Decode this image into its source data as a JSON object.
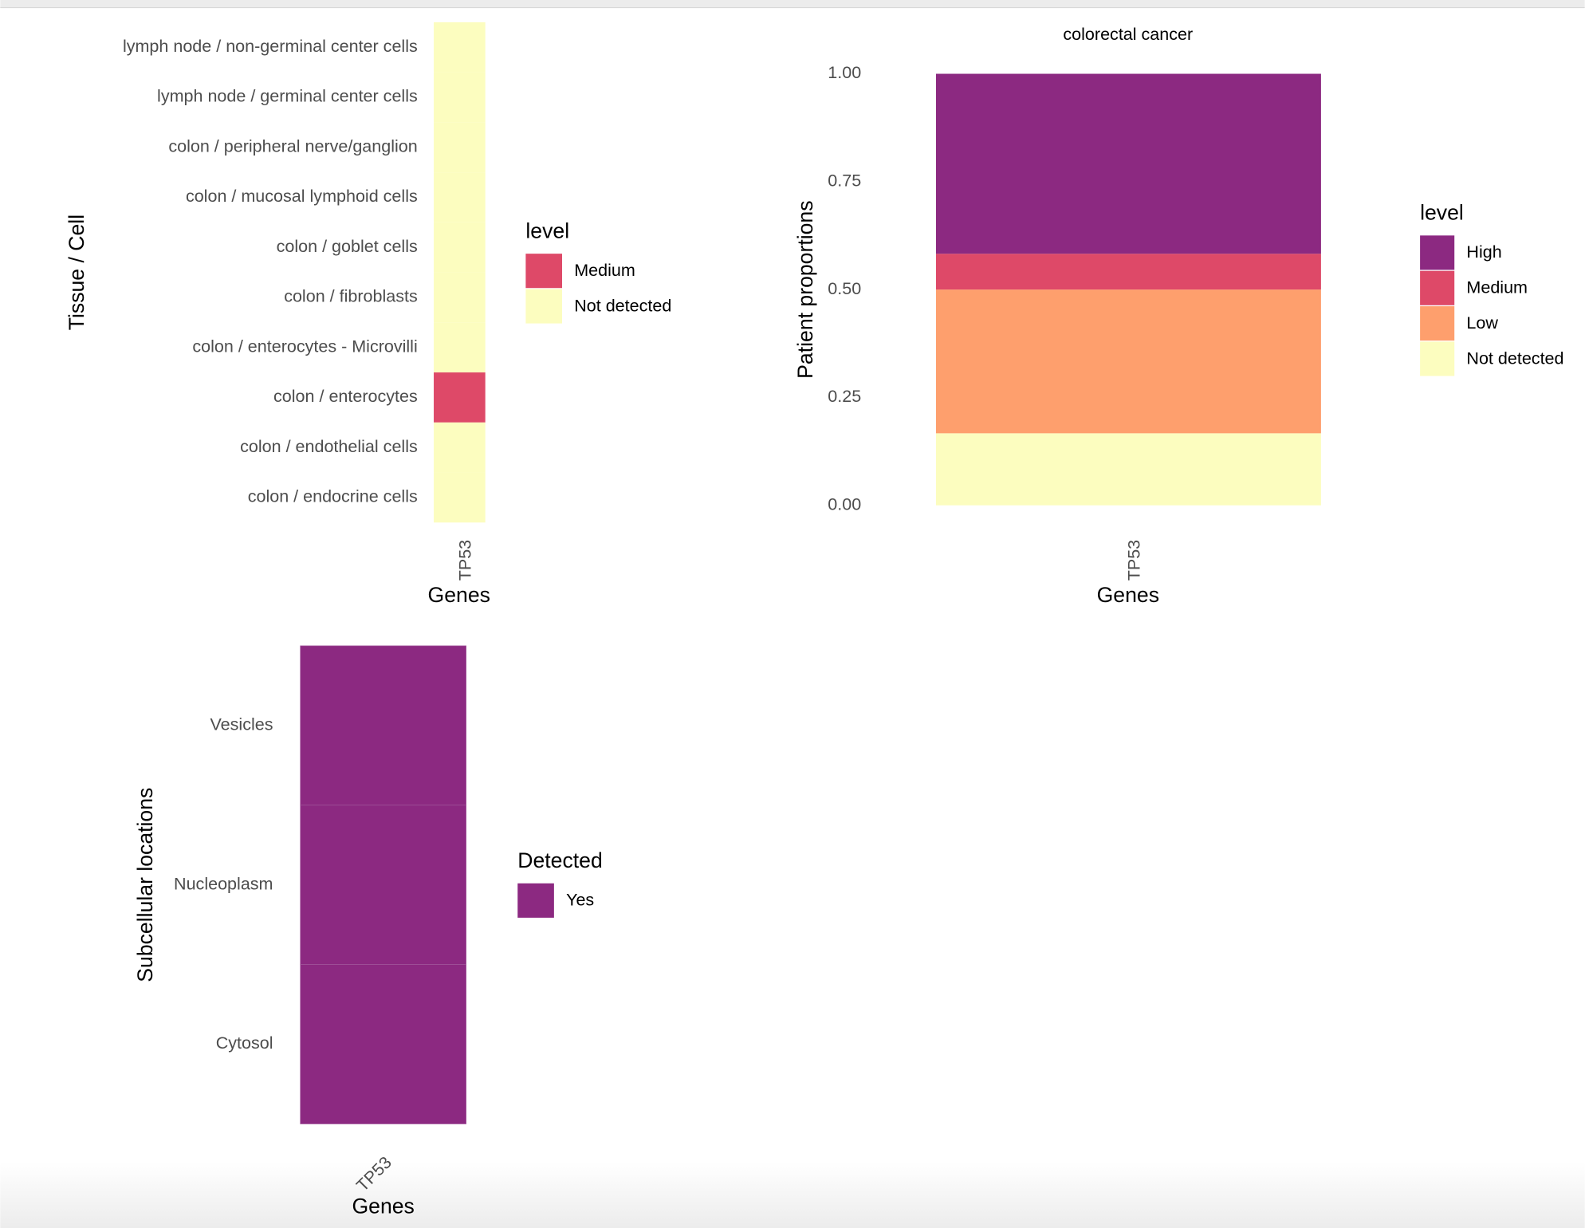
{
  "chart_data": [
    {
      "type": "heatmap",
      "y_label": "Tissue / Cell",
      "x_label": "Genes",
      "x_categories": [
        "TP53"
      ],
      "categories": [
        "lymph node / non-germinal center cells",
        "lymph node / germinal center cells",
        "colon / peripheral nerve/ganglion",
        "colon / mucosal lymphoid cells",
        "colon / goblet cells",
        "colon / fibroblasts",
        "colon / enterocytes - Microvilli",
        "colon / enterocytes",
        "colon / endothelial cells",
        "colon / endocrine cells"
      ],
      "values": [
        "Not detected",
        "Not detected",
        "Not detected",
        "Not detected",
        "Not detected",
        "Not detected",
        "Not detected",
        "Medium",
        "Not detected",
        "Not detected"
      ],
      "legend_title": "level",
      "levels": [
        {
          "name": "Medium",
          "color": "#de4968"
        },
        {
          "name": "Not detected",
          "color": "#fcfdbf"
        }
      ]
    },
    {
      "type": "stacked_bar",
      "title": "colorectal cancer",
      "y_label": "Patient proportions",
      "x_label": "Genes",
      "categories": [
        "TP53"
      ],
      "legend_title": "level",
      "series": [
        {
          "name": "High",
          "color": "#8c2981",
          "values": [
            0.417
          ]
        },
        {
          "name": "Medium",
          "color": "#de4968",
          "values": [
            0.083
          ]
        },
        {
          "name": "Low",
          "color": "#fe9f6d",
          "values": [
            0.333
          ]
        },
        {
          "name": "Not detected",
          "color": "#fcfdbf",
          "values": [
            0.167
          ]
        }
      ],
      "ylim": [
        0,
        1
      ],
      "yticks": [
        {
          "value": 0,
          "label": "0.00"
        },
        {
          "value": 0.25,
          "label": "0.25"
        },
        {
          "value": 0.5,
          "label": "0.50"
        },
        {
          "value": 0.75,
          "label": "0.75"
        },
        {
          "value": 1,
          "label": "1.00"
        }
      ]
    },
    {
      "type": "heatmap",
      "y_label": "Subcellular locations",
      "x_label": "Genes",
      "x_categories": [
        "TP53"
      ],
      "categories": [
        "Vesicles",
        "Nucleoplasm",
        "Cytosol"
      ],
      "values": [
        "Yes",
        "Yes",
        "Yes"
      ],
      "legend_title": "Detected",
      "levels": [
        {
          "name": "Yes",
          "color": "#8c2981"
        }
      ]
    }
  ]
}
